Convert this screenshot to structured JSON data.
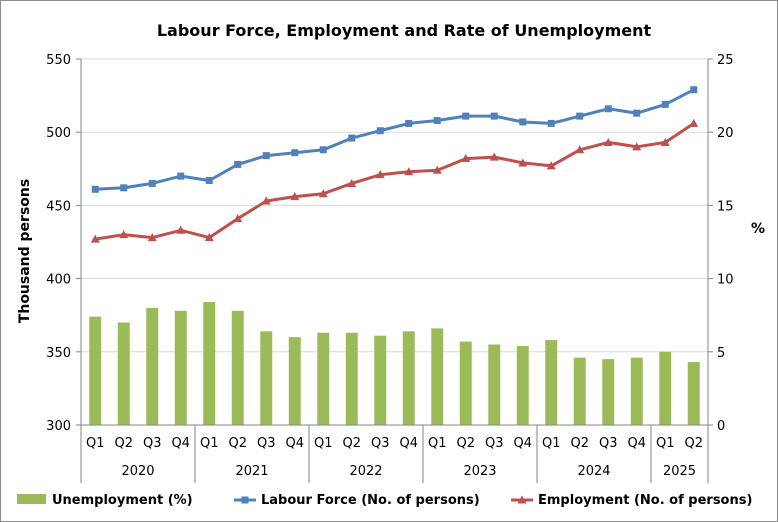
{
  "chart_data": {
    "type": "bar",
    "title": "Labour Force, Employment and Rate of Unemployment",
    "ylabel": "Thousand persons",
    "y2label": "%",
    "ylim": [
      300,
      550
    ],
    "y2lim": [
      0,
      25
    ],
    "yticks": [
      300,
      350,
      400,
      450,
      500,
      550
    ],
    "y2ticks": [
      0,
      5,
      10,
      15,
      20,
      25
    ],
    "categories": [
      "Q1",
      "Q2",
      "Q3",
      "Q4",
      "Q1",
      "Q2",
      "Q3",
      "Q4",
      "Q1",
      "Q2",
      "Q3",
      "Q4",
      "Q1",
      "Q2",
      "Q3",
      "Q4",
      "Q1",
      "Q2",
      "Q3",
      "Q4",
      "Q1",
      "Q2"
    ],
    "years": [
      {
        "label": "2020",
        "quarters": 4
      },
      {
        "label": "2021",
        "quarters": 4
      },
      {
        "label": "2022",
        "quarters": 4
      },
      {
        "label": "2023",
        "quarters": 4
      },
      {
        "label": "2024",
        "quarters": 4
      },
      {
        "label": "2025",
        "quarters": 2
      }
    ],
    "series": [
      {
        "name": "Unemployment (%)",
        "type": "bar",
        "axis": "right",
        "color": "#9bbb59",
        "values": [
          7.4,
          7.0,
          8.0,
          7.8,
          8.4,
          7.8,
          6.4,
          6.0,
          6.3,
          6.3,
          6.1,
          6.4,
          6.6,
          5.7,
          5.5,
          5.4,
          5.8,
          4.6,
          4.5,
          4.6,
          5.0,
          4.3
        ]
      },
      {
        "name": "Labour Force (No. of persons)",
        "type": "line",
        "axis": "left",
        "marker": "square",
        "color": "#4f81bd",
        "values": [
          461,
          462,
          465,
          470,
          467,
          478,
          484,
          486,
          488,
          496,
          501,
          506,
          508,
          511,
          511,
          507,
          506,
          511,
          516,
          513,
          519,
          529
        ]
      },
      {
        "name": "Employment (No. of persons)",
        "type": "line",
        "axis": "left",
        "marker": "triangle",
        "color": "#c0504d",
        "values": [
          427,
          430,
          428,
          433,
          428,
          441,
          453,
          456,
          458,
          465,
          471,
          473,
          474,
          482,
          483,
          479,
          477,
          488,
          493,
          490,
          493,
          506
        ]
      }
    ],
    "grid": "horizontal-major",
    "legend_position": "bottom"
  }
}
